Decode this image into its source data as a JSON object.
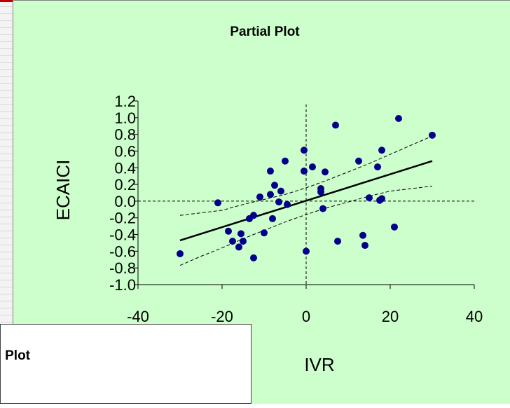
{
  "chart_data": {
    "type": "scatter",
    "title": "Partial Plot",
    "xlabel": "IVR",
    "ylabel": "ECAICI",
    "xlim": [
      -40,
      40
    ],
    "ylim": [
      -1.0,
      1.2
    ],
    "xticks": [
      "-40",
      "-20",
      "0",
      "20",
      "40"
    ],
    "yticks": [
      "1.2",
      "1.0",
      "0.8",
      "0.6",
      "0.4",
      "0.2",
      "0.0",
      "-0.2",
      "-0.4",
      "-0.6",
      "-0.8",
      "-1.0"
    ],
    "ytick_values": [
      1.2,
      1.0,
      0.8,
      0.6,
      0.4,
      0.2,
      0.0,
      -0.2,
      -0.4,
      -0.6,
      -0.8,
      -1.0
    ],
    "xtick_values": [
      -40,
      -20,
      0,
      20,
      40
    ],
    "reference_lines": {
      "x": 0,
      "y": 0
    },
    "points": [
      {
        "x": -30,
        "y": -0.63
      },
      {
        "x": -21,
        "y": -0.02
      },
      {
        "x": -18.5,
        "y": -0.36
      },
      {
        "x": -17.5,
        "y": -0.48
      },
      {
        "x": -16,
        "y": -0.55
      },
      {
        "x": -15.5,
        "y": -0.39
      },
      {
        "x": -15,
        "y": -0.48
      },
      {
        "x": -13.5,
        "y": -0.21
      },
      {
        "x": -12.5,
        "y": -0.17
      },
      {
        "x": -12.5,
        "y": -0.68
      },
      {
        "x": -11,
        "y": 0.05
      },
      {
        "x": -10,
        "y": -0.38
      },
      {
        "x": -8.5,
        "y": 0.36
      },
      {
        "x": -8.5,
        "y": 0.08
      },
      {
        "x": -8,
        "y": -0.21
      },
      {
        "x": -7.5,
        "y": 0.19
      },
      {
        "x": -6.5,
        "y": -0.01
      },
      {
        "x": -6,
        "y": 0.12
      },
      {
        "x": -5,
        "y": 0.48
      },
      {
        "x": -4.5,
        "y": -0.04
      },
      {
        "x": -0.5,
        "y": 0.61
      },
      {
        "x": -0.5,
        "y": 0.36
      },
      {
        "x": 0,
        "y": -0.6
      },
      {
        "x": 1.5,
        "y": 0.41
      },
      {
        "x": 3.5,
        "y": 0.15
      },
      {
        "x": 3.5,
        "y": 0.11
      },
      {
        "x": 4,
        "y": -0.09
      },
      {
        "x": 4.5,
        "y": 0.35
      },
      {
        "x": 7,
        "y": 0.91
      },
      {
        "x": 7.5,
        "y": -0.48
      },
      {
        "x": 12.5,
        "y": 0.48
      },
      {
        "x": 13.5,
        "y": -0.41
      },
      {
        "x": 14,
        "y": -0.53
      },
      {
        "x": 15,
        "y": 0.04
      },
      {
        "x": 17,
        "y": 0.41
      },
      {
        "x": 17.5,
        "y": 0.01
      },
      {
        "x": 18,
        "y": 0.03
      },
      {
        "x": 18,
        "y": 0.61
      },
      {
        "x": 21,
        "y": -0.31
      },
      {
        "x": 22,
        "y": 0.99
      },
      {
        "x": 30,
        "y": 0.79
      }
    ],
    "fit_line": [
      {
        "x": -30,
        "y": -0.47
      },
      {
        "x": 30,
        "y": 0.48
      }
    ],
    "confidence_upper": [
      {
        "x": -30,
        "y": -0.17
      },
      {
        "x": -20,
        "y": -0.11
      },
      {
        "x": -15,
        "y": -0.04
      },
      {
        "x": -10,
        "y": 0.02
      },
      {
        "x": -5,
        "y": 0.08
      },
      {
        "x": 0,
        "y": 0.16
      },
      {
        "x": 5,
        "y": 0.25
      },
      {
        "x": 10,
        "y": 0.35
      },
      {
        "x": 15,
        "y": 0.45
      },
      {
        "x": 20,
        "y": 0.56
      },
      {
        "x": 25,
        "y": 0.67
      },
      {
        "x": 30,
        "y": 0.78
      }
    ],
    "confidence_lower": [
      {
        "x": -30,
        "y": -0.77
      },
      {
        "x": -25,
        "y": -0.66
      },
      {
        "x": -20,
        "y": -0.56
      },
      {
        "x": -15,
        "y": -0.45
      },
      {
        "x": -10,
        "y": -0.35
      },
      {
        "x": -5,
        "y": -0.25
      },
      {
        "x": 0,
        "y": -0.16
      },
      {
        "x": 5,
        "y": -0.08
      },
      {
        "x": 10,
        "y": -0.01
      },
      {
        "x": 15,
        "y": 0.06
      },
      {
        "x": 20,
        "y": 0.12
      },
      {
        "x": 30,
        "y": 0.18
      }
    ],
    "colors": {
      "background": "#ccffcc",
      "points": "#00008b",
      "fit_line": "#000000",
      "guides": "#000000"
    }
  },
  "overlay": {
    "title_fragment": "al Plot"
  }
}
